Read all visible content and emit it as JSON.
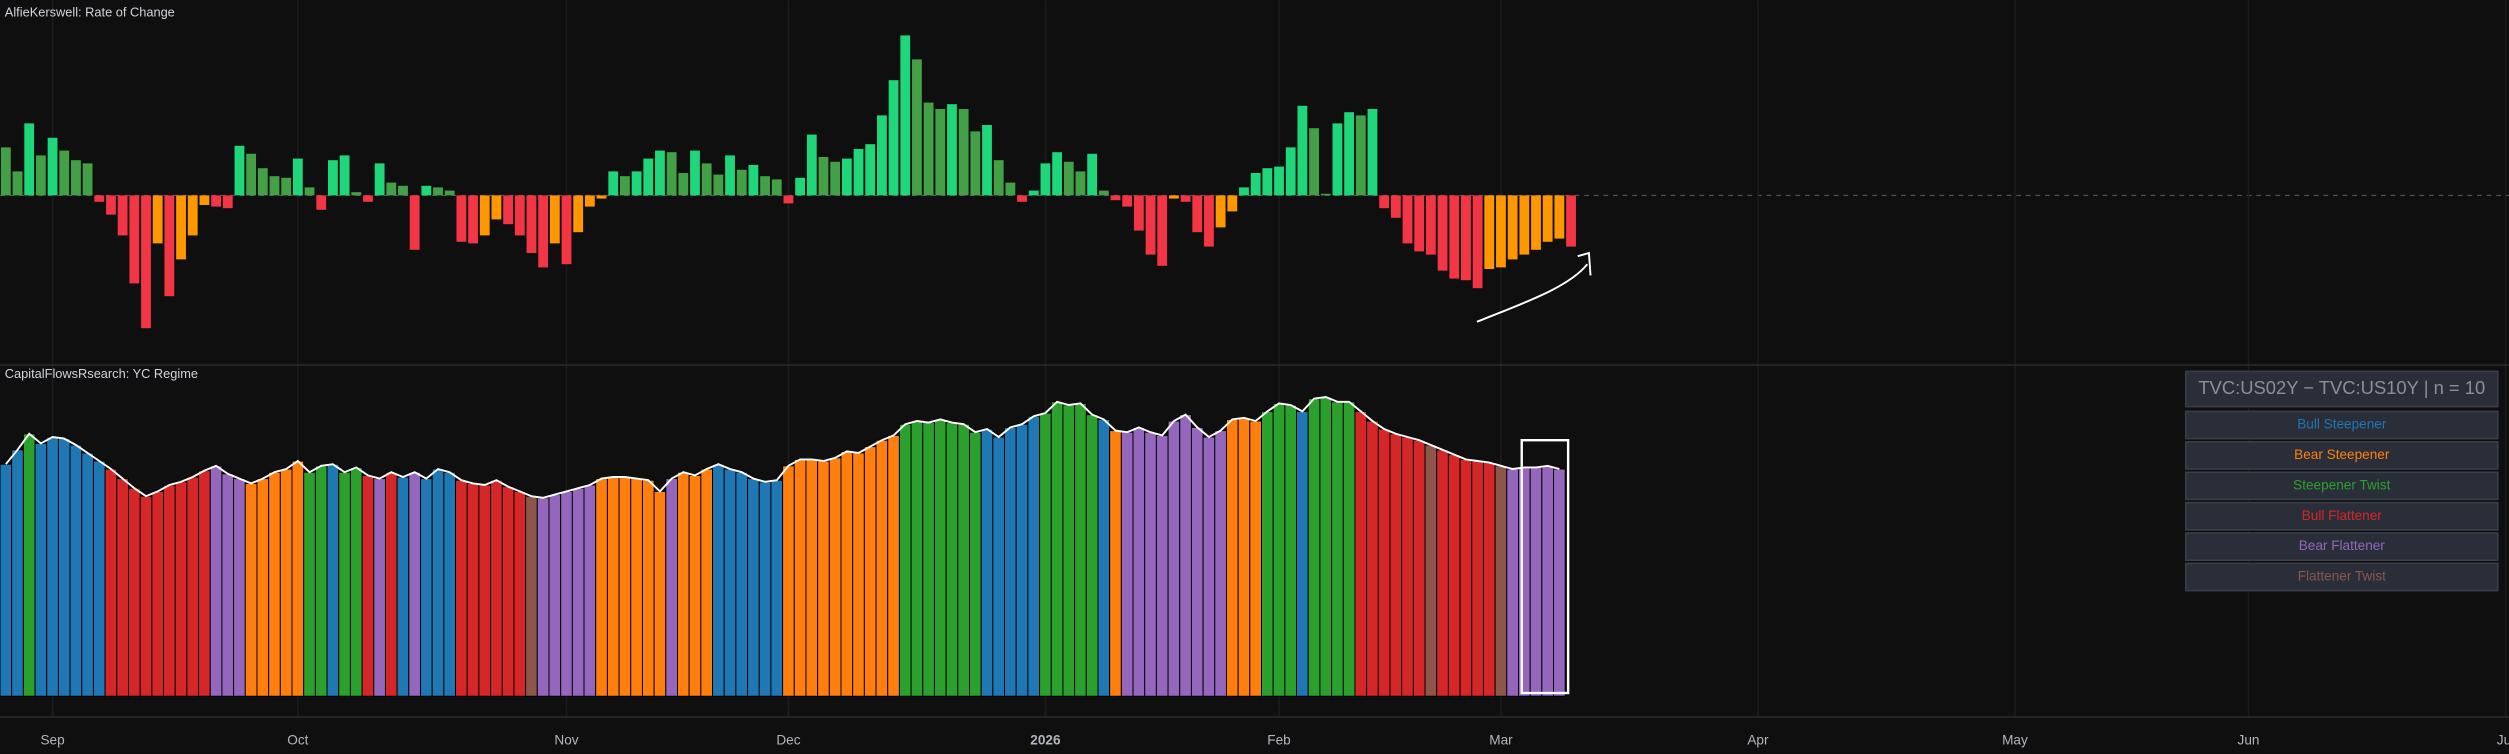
{
  "chart_data": [
    {
      "type": "bar",
      "title": "AlfieKerswell: Rate of Change",
      "colors": {
        "up_rising": "#1fd67a",
        "up_falling": "#43a047",
        "down_falling": "#f23645",
        "down_rising": "#ff9800"
      },
      "values": [
        3,
        1.5,
        4.5,
        2.5,
        3.6,
        2.8,
        2.2,
        2,
        -0.4,
        -1.2,
        -2.5,
        -5.5,
        -8.3,
        -3,
        -6.3,
        -4,
        -2.5,
        -0.6,
        -0.7,
        -0.8,
        3.1,
        2.6,
        1.7,
        1.2,
        1.1,
        2.3,
        0.5,
        -0.9,
        2.2,
        2.5,
        0.2,
        -0.4,
        2,
        0.8,
        0.6,
        -3.4,
        0.6,
        0.5,
        0.3,
        -2.9,
        -3,
        -2.5,
        -1.5,
        -1.8,
        -2.5,
        -3.6,
        -4.5,
        -3,
        -4.3,
        -2.3,
        -0.7,
        -0.2,
        1.5,
        1.2,
        1.5,
        2.3,
        2.8,
        2.7,
        1.4,
        2.8,
        2,
        1.3,
        2.5,
        1.6,
        1.9,
        1.2,
        1,
        -0.5,
        1.1,
        3.8,
        2.4,
        2.1,
        2.3,
        2.9,
        3.2,
        5,
        7.2,
        10,
        8.5,
        5.8,
        5.4,
        5.7,
        5.4,
        4,
        4.4,
        2.2,
        0.8,
        -0.4,
        0.3,
        2,
        2.7,
        2.1,
        1.5,
        2.6,
        0.3,
        -0.3,
        -0.7,
        -2.2,
        -3.7,
        -4.4,
        -0.2,
        -0.4,
        -2.3,
        -3.2,
        -2,
        -1,
        0.5,
        1.4,
        1.7,
        1.8,
        3,
        5.6,
        4.2,
        0.1,
        4.5,
        5.2,
        5,
        5.4,
        -0.8,
        -1.4,
        -3,
        -3.5,
        -3.7,
        -4.7,
        -5.2,
        -5.3,
        -5.8,
        -4.6,
        -4.5,
        -4,
        -3.7,
        -3.4,
        -2.9,
        -2.7,
        -3.2
      ],
      "xlim": [
        -0.5,
        214.3
      ],
      "ylim": [
        -10.3,
        12.2
      ],
      "zero_line": "dashed"
    },
    {
      "type": "regime",
      "title": "CapitalFlowsRsearch: YC Regime",
      "legend_title": "TVC:US02Y − TVC:US10Y | n = 10",
      "legend": "right",
      "line_color": "#ffffff",
      "regimes": [
        {
          "name": "Bull Steepener",
          "color": "#1f77b4"
        },
        {
          "name": "Bear Steepener",
          "color": "#ff7f0e"
        },
        {
          "name": "Steepener Twist",
          "color": "#2ca02c"
        },
        {
          "name": "Bull Flattener",
          "color": "#d62728"
        },
        {
          "name": "Bear Flattener",
          "color": "#9467bd"
        },
        {
          "name": "Flattener Twist",
          "color": "#8c564b"
        }
      ],
      "regime": [
        0,
        0,
        2,
        0,
        0,
        0,
        0,
        0,
        0,
        3,
        3,
        3,
        3,
        3,
        3,
        3,
        3,
        3,
        4,
        4,
        4,
        1,
        1,
        1,
        1,
        1,
        2,
        2,
        0,
        2,
        2,
        3,
        4,
        3,
        0,
        4,
        0,
        0,
        0,
        3,
        3,
        3,
        3,
        3,
        3,
        5,
        4,
        4,
        4,
        4,
        4,
        1,
        1,
        1,
        1,
        1,
        1,
        4,
        1,
        1,
        1,
        0,
        0,
        0,
        0,
        0,
        0,
        1,
        1,
        1,
        1,
        1,
        1,
        1,
        1,
        1,
        1,
        2,
        2,
        2,
        2,
        2,
        2,
        2,
        0,
        0,
        0,
        0,
        0,
        2,
        2,
        2,
        2,
        2,
        0,
        1,
        4,
        4,
        4,
        4,
        4,
        4,
        4,
        4,
        4,
        1,
        1,
        1,
        2,
        2,
        2,
        0,
        2,
        2,
        2,
        2,
        3,
        3,
        3,
        3,
        3,
        3,
        5,
        3,
        3,
        3,
        3,
        3,
        5,
        4,
        4,
        4,
        4,
        4
      ],
      "values": [
        14.5,
        15.4,
        16.4,
        15.8,
        16.2,
        16.1,
        15.7,
        15.2,
        14.7,
        14.2,
        13.6,
        13,
        12.5,
        12.8,
        13.2,
        13.4,
        13.7,
        14.1,
        14.4,
        13.9,
        13.6,
        13.3,
        13.6,
        14,
        14.2,
        14.7,
        14,
        14.4,
        14.5,
        14,
        14.3,
        13.8,
        13.6,
        14,
        13.7,
        14,
        13.6,
        14.2,
        14,
        13.5,
        13.3,
        13.2,
        13.5,
        13.1,
        12.8,
        12.5,
        12.4,
        12.6,
        12.8,
        13,
        13.2,
        13.6,
        13.7,
        13.7,
        13.6,
        13.5,
        12.8,
        13.6,
        14,
        13.8,
        14.2,
        14.5,
        14.2,
        14,
        13.6,
        13.4,
        13.5,
        14.4,
        14.8,
        14.8,
        14.7,
        14.9,
        15.3,
        15.2,
        15.6,
        16,
        16.3,
        17,
        17.2,
        17.1,
        17.3,
        17.1,
        17,
        16.5,
        16.7,
        16.2,
        16.8,
        17,
        17.5,
        17.7,
        18.4,
        18.2,
        18.3,
        17.6,
        17.3,
        16.6,
        16.5,
        16.8,
        16.5,
        16.3,
        17.2,
        17.6,
        16.8,
        16.2,
        16.6,
        17.3,
        17.4,
        17.2,
        17.8,
        18.3,
        18.2,
        17.8,
        18.6,
        18.7,
        18.4,
        18.4,
        17.8,
        17.2,
        16.7,
        16.4,
        16.2,
        16,
        15.7,
        15.4,
        15.1,
        14.8,
        14.7,
        14.6,
        14.4,
        14.2,
        14.3,
        14.3,
        14.4,
        14.2
      ],
      "xlim": [
        -0.5,
        214.3
      ],
      "ylim": [
        0,
        20.7
      ],
      "xticks": [
        {
          "value": 4,
          "label": "Sep"
        },
        {
          "value": 25,
          "label": "Oct"
        },
        {
          "value": 48,
          "label": "Nov"
        },
        {
          "value": 67,
          "label": "Dec"
        },
        {
          "value": 89,
          "label": "2026"
        },
        {
          "value": 109,
          "label": "Feb"
        },
        {
          "value": 128,
          "label": "Mar"
        },
        {
          "value": 150,
          "label": "Apr"
        },
        {
          "value": 172,
          "label": "May"
        },
        {
          "value": 192,
          "label": "Jun"
        },
        {
          "value": 214,
          "label": "Jul"
        }
      ]
    }
  ]
}
